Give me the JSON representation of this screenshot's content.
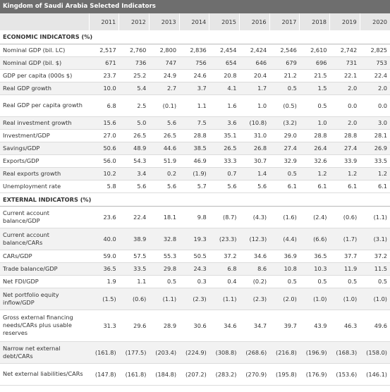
{
  "title": "Kingdom of Saudi Arabia Selected Indicators",
  "years": [
    "2011",
    "2012",
    "2013",
    "2014",
    "2015",
    "2016",
    "2017",
    "2018",
    "2019",
    "2020"
  ],
  "sections": [
    {
      "heading": "ECONOMIC INDICATORS (%)",
      "rows": [
        {
          "label": "Nominal GDP (bil. LC)",
          "values": [
            "2,517",
            "2,760",
            "2,800",
            "2,836",
            "2,454",
            "2,424",
            "2,546",
            "2,610",
            "2,742",
            "2,825"
          ]
        },
        {
          "label": "Nominal GDP (bil. $)",
          "values": [
            "671",
            "736",
            "747",
            "756",
            "654",
            "646",
            "679",
            "696",
            "731",
            "753"
          ]
        },
        {
          "label": "GDP per capita (000s $)",
          "values": [
            "23.7",
            "25.2",
            "24.9",
            "24.6",
            "20.8",
            "20.4",
            "21.2",
            "21.5",
            "22.1",
            "22.4"
          ]
        },
        {
          "label": "Real GDP growth",
          "values": [
            "10.0",
            "5.4",
            "2.7",
            "3.7",
            "4.1",
            "1.7",
            "0.5",
            "1.5",
            "2.0",
            "2.0"
          ]
        },
        {
          "label": "Real GDP per capita growth",
          "values": [
            "6.8",
            "2.5",
            "(0.1)",
            "1.1",
            "1.6",
            "1.0",
            "(0.5)",
            "0.5",
            "0.0",
            "0.0"
          ]
        },
        {
          "label": "Real investment growth",
          "values": [
            "15.6",
            "5.0",
            "5.6",
            "7.5",
            "3.6",
            "(10.8)",
            "(3.2)",
            "1.0",
            "2.0",
            "3.0"
          ]
        },
        {
          "label": "Investment/GDP",
          "values": [
            "27.0",
            "26.5",
            "26.5",
            "28.8",
            "35.1",
            "31.0",
            "29.0",
            "28.8",
            "28.8",
            "28.1"
          ]
        },
        {
          "label": "Savings/GDP",
          "values": [
            "50.6",
            "48.9",
            "44.6",
            "38.5",
            "26.5",
            "26.8",
            "27.4",
            "26.4",
            "27.4",
            "26.9"
          ]
        },
        {
          "label": "Exports/GDP",
          "values": [
            "56.0",
            "54.3",
            "51.9",
            "46.9",
            "33.3",
            "30.7",
            "32.9",
            "32.6",
            "33.9",
            "33.5"
          ]
        },
        {
          "label": "Real exports growth",
          "values": [
            "10.2",
            "3.4",
            "0.2",
            "(1.9)",
            "0.7",
            "1.4",
            "0.5",
            "1.2",
            "1.2",
            "1.2"
          ]
        },
        {
          "label": "Unemployment rate",
          "values": [
            "5.8",
            "5.6",
            "5.6",
            "5.7",
            "5.6",
            "5.6",
            "6.1",
            "6.1",
            "6.1",
            "6.1"
          ]
        }
      ]
    },
    {
      "heading": "EXTERNAL INDICATORS (%)",
      "rows": [
        {
          "label": "Current account balance/GDP",
          "values": [
            "23.6",
            "22.4",
            "18.1",
            "9.8",
            "(8.7)",
            "(4.3)",
            "(1.6)",
            "(2.4)",
            "(0.6)",
            "(1.1)"
          ]
        },
        {
          "label": "Current account balance/CARs",
          "values": [
            "40.0",
            "38.9",
            "32.8",
            "19.3",
            "(23.3)",
            "(12.3)",
            "(4.4)",
            "(6.6)",
            "(1.7)",
            "(3.1)"
          ]
        },
        {
          "label": "CARs/GDP",
          "values": [
            "59.0",
            "57.5",
            "55.3",
            "50.5",
            "37.2",
            "34.6",
            "36.9",
            "36.5",
            "37.7",
            "37.2"
          ]
        },
        {
          "label": "Trade balance/GDP",
          "values": [
            "36.5",
            "33.5",
            "29.8",
            "24.3",
            "6.8",
            "8.6",
            "10.8",
            "10.3",
            "11.9",
            "11.5"
          ]
        },
        {
          "label": "Net FDI/GDP",
          "values": [
            "1.9",
            "1.1",
            "0.5",
            "0.3",
            "0.4",
            "(0.2)",
            "0.5",
            "0.5",
            "0.5",
            "0.5"
          ]
        },
        {
          "label": "Net portfolio equity inflow/GDP",
          "values": [
            "(1.5)",
            "(0.6)",
            "(1.1)",
            "(2.3)",
            "(1.1)",
            "(2.3)",
            "(2.0)",
            "(1.0)",
            "(1.0)",
            "(1.0)"
          ]
        },
        {
          "label": "Gross external financing needs/CARs plus usable reserves",
          "values": [
            "31.3",
            "29.6",
            "28.9",
            "30.6",
            "34.6",
            "34.7",
            "39.7",
            "43.9",
            "46.3",
            "49.6"
          ]
        },
        {
          "label": "Narrow net external debt/CARs",
          "values": [
            "(161.8)",
            "(177.5)",
            "(203.4)",
            "(224.9)",
            "(308.8)",
            "(268.6)",
            "(216.8)",
            "(196.9)",
            "(168.3)",
            "(158.0)"
          ]
        },
        {
          "label": "Net external liabilities/CARs",
          "values": [
            "(147.8)",
            "(161.8)",
            "(184.8)",
            "(207.2)",
            "(283.2)",
            "(270.9)",
            "(195.8)",
            "(176.9)",
            "(153.6)",
            "(146.1)"
          ]
        }
      ]
    }
  ]
}
